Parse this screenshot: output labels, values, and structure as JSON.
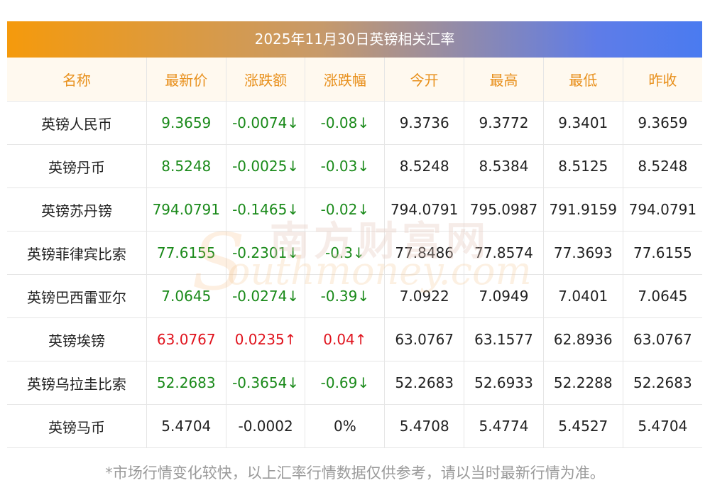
{
  "title": "2025年11月30日英镑相关汇率",
  "headers": [
    "名称",
    "最新价",
    "涨跌额",
    "涨跌幅",
    "今开",
    "最高",
    "最低",
    "昨收"
  ],
  "rows": [
    {
      "name": "英镑人民币",
      "latest": "9.3659",
      "change": "-0.0074↓",
      "pct": "-0.08↓",
      "open": "9.3736",
      "high": "9.3772",
      "low": "9.3401",
      "prev": "9.3659",
      "dir": "down"
    },
    {
      "name": "英镑丹币",
      "latest": "8.5248",
      "change": "-0.0025↓",
      "pct": "-0.03↓",
      "open": "8.5248",
      "high": "8.5384",
      "low": "8.5125",
      "prev": "8.5248",
      "dir": "down"
    },
    {
      "name": "英镑苏丹镑",
      "latest": "794.0791",
      "change": "-0.1465↓",
      "pct": "-0.02↓",
      "open": "794.0791",
      "high": "795.0987",
      "low": "791.9159",
      "prev": "794.0791",
      "dir": "down"
    },
    {
      "name": "英镑菲律宾比索",
      "latest": "77.6155",
      "change": "-0.2301↓",
      "pct": "-0.3↓",
      "open": "77.8486",
      "high": "77.8574",
      "low": "77.3693",
      "prev": "77.6155",
      "dir": "down"
    },
    {
      "name": "英镑巴西雷亚尔",
      "latest": "7.0645",
      "change": "-0.0274↓",
      "pct": "-0.39↓",
      "open": "7.0922",
      "high": "7.0949",
      "low": "7.0401",
      "prev": "7.0645",
      "dir": "down"
    },
    {
      "name": "英镑埃镑",
      "latest": "63.0767",
      "change": "0.0235↑",
      "pct": "0.04↑",
      "open": "63.0767",
      "high": "63.1577",
      "low": "62.8936",
      "prev": "63.0767",
      "dir": "up"
    },
    {
      "name": "英镑乌拉圭比索",
      "latest": "52.2683",
      "change": "-0.3654↓",
      "pct": "-0.69↓",
      "open": "52.2683",
      "high": "52.6933",
      "low": "52.2288",
      "prev": "52.2683",
      "dir": "down"
    },
    {
      "name": "英镑马币",
      "latest": "5.4704",
      "change": "-0.0002",
      "pct": "0%",
      "open": "5.4708",
      "high": "5.4774",
      "low": "5.4527",
      "prev": "5.4704",
      "dir": "flat"
    }
  ],
  "watermark": {
    "cn": "南方财富网",
    "en": "outhmoney.com",
    "s": "S"
  },
  "footer": "*市场行情变化较快，以上汇率行情数据仅供参考，请以当时最新行情为准。",
  "colors": {
    "up": "#e0131d",
    "down": "#1a8a1a",
    "header_text": "#e8901c"
  }
}
